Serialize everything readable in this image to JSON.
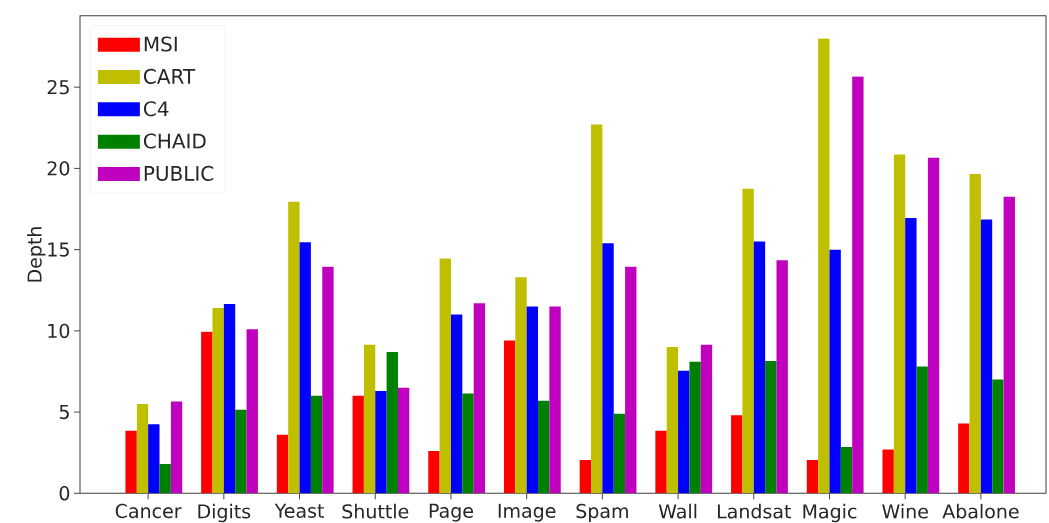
{
  "chart_data": {
    "type": "bar",
    "categories": [
      "Cancer",
      "Digits",
      "Yeast",
      "Shuttle",
      "Page",
      "Image",
      "Spam",
      "Wall",
      "Landsat",
      "Magic",
      "Wine",
      "Abalone"
    ],
    "series": [
      {
        "name": "MSI",
        "color": "#ff0000",
        "values": [
          3.85,
          9.95,
          3.6,
          6.0,
          2.6,
          9.4,
          2.05,
          3.85,
          4.8,
          2.05,
          2.7,
          4.3
        ]
      },
      {
        "name": "CART",
        "color": "#bfbf00",
        "values": [
          5.5,
          11.4,
          17.95,
          9.15,
          14.45,
          13.3,
          22.7,
          9.0,
          18.75,
          28.0,
          20.85,
          19.65
        ]
      },
      {
        "name": "C4",
        "color": "#0000ff",
        "values": [
          4.25,
          11.65,
          15.45,
          6.3,
          11.0,
          11.5,
          15.4,
          7.55,
          15.5,
          15.0,
          16.95,
          16.85
        ]
      },
      {
        "name": "CHAID",
        "color": "#008000",
        "values": [
          1.8,
          5.15,
          6.0,
          8.7,
          6.15,
          5.7,
          4.9,
          8.1,
          8.15,
          2.85,
          7.8,
          7.0
        ]
      },
      {
        "name": "PUBLIC",
        "color": "#bf00bf",
        "values": [
          5.65,
          10.1,
          13.95,
          6.5,
          11.7,
          11.5,
          13.95,
          9.15,
          14.35,
          25.65,
          20.65,
          18.25
        ]
      }
    ],
    "ylabel": "Depth",
    "ylim": [
      0,
      29.4
    ],
    "yticks": [
      0,
      5,
      10,
      15,
      20,
      25
    ],
    "legend": "top left"
  }
}
